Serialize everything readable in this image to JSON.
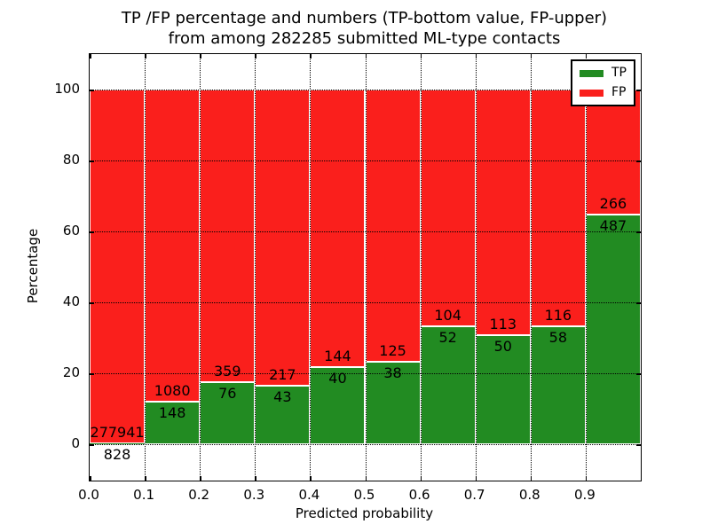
{
  "figure": {
    "title_line1": "TP /FP percentage and numbers (TP-bottom value, FP-upper)",
    "title_line2": "from among 282285 submitted ML-type contacts",
    "xlabel": "Predicted probability",
    "ylabel": "Percentage"
  },
  "legend": {
    "items": [
      {
        "label": "TP",
        "color": "#228b22"
      },
      {
        "label": "FP",
        "color": "#fa1f1c"
      }
    ]
  },
  "colors": {
    "tp": "#228b22",
    "fp": "#fa1f1c",
    "bar_edge": "#ffffff",
    "grid": "#000000"
  },
  "chart_data": {
    "type": "bar",
    "stacked": true,
    "title": "TP /FP percentage and numbers (TP-bottom value, FP-upper) from among 282285 submitted ML-type contacts",
    "xlabel": "Predicted probability",
    "ylabel": "Percentage",
    "total_submitted": 282285,
    "bin_start": [
      0.0,
      0.1,
      0.2,
      0.3,
      0.4,
      0.5,
      0.6,
      0.7,
      0.8,
      0.9
    ],
    "bin_width": 0.1,
    "x_tick_labels": [
      "0.0",
      "0.1",
      "0.2",
      "0.3",
      "0.4",
      "0.5",
      "0.6",
      "0.7",
      "0.8",
      "0.9"
    ],
    "y_tick_values": [
      0,
      20,
      40,
      60,
      80,
      100
    ],
    "xlim": [
      0,
      1
    ],
    "ylim": [
      -10.25,
      110
    ],
    "grid": true,
    "legend_position": "upper right",
    "series": [
      {
        "name": "TP",
        "counts": [
          828,
          148,
          76,
          43,
          40,
          38,
          52,
          50,
          58,
          487
        ],
        "percent": [
          0.297,
          12.052,
          17.471,
          16.538,
          21.739,
          23.313,
          33.333,
          30.675,
          33.333,
          64.675
        ]
      },
      {
        "name": "FP",
        "counts": [
          277941,
          1080,
          359,
          217,
          144,
          125,
          104,
          113,
          116,
          266
        ],
        "percent": [
          99.703,
          87.948,
          82.529,
          83.462,
          78.261,
          76.687,
          66.667,
          69.325,
          66.667,
          35.325
        ]
      }
    ]
  }
}
